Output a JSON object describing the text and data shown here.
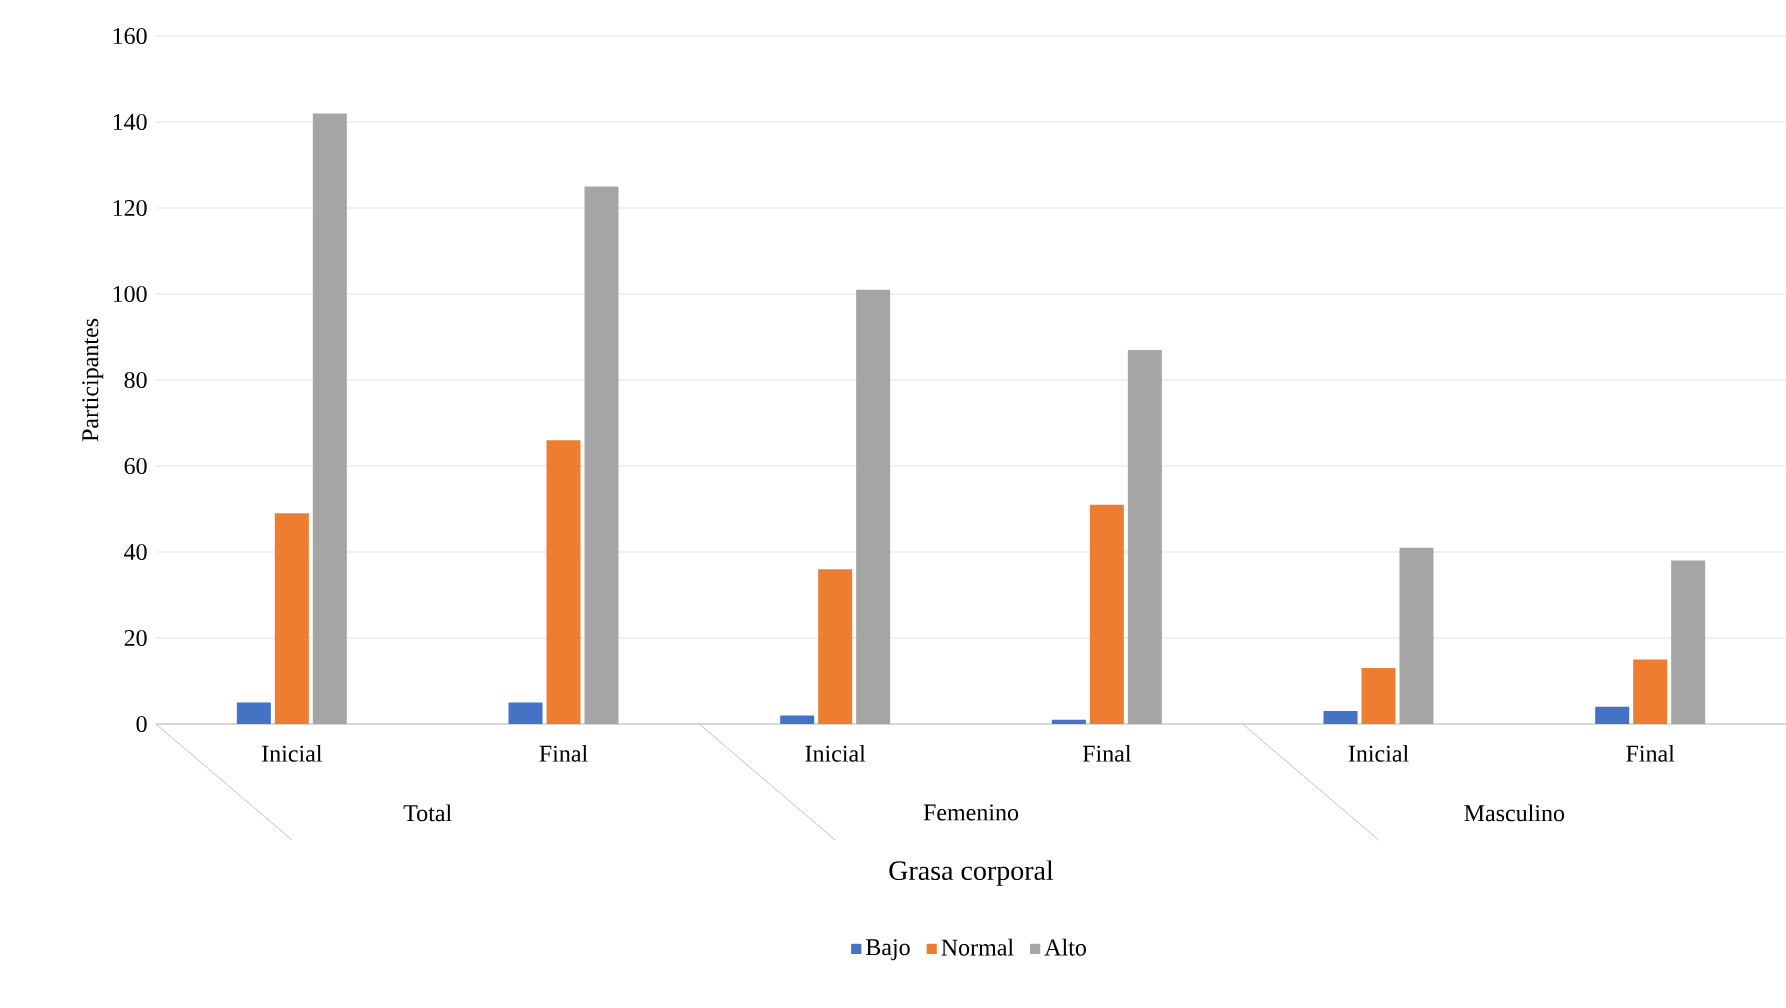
{
  "chart_data": {
    "type": "bar",
    "xlabel": "Grasa corporal",
    "ylabel": "Participantes",
    "categories": [
      "Inicial",
      "Final",
      "Inicial",
      "Final",
      "Inicial",
      "Final"
    ],
    "annotations": [
      "Total",
      "Femenino",
      "Masculino"
    ],
    "series": [
      {
        "name": "Bajo",
        "color": "#4472c4",
        "values": [
          5,
          5,
          2,
          1,
          3,
          4
        ]
      },
      {
        "name": "Normal",
        "color": "#ed7d31",
        "values": [
          49,
          66,
          36,
          51,
          13,
          15
        ]
      },
      {
        "name": "Alto",
        "color": "#a5a5a5",
        "values": [
          142,
          125,
          101,
          87,
          41,
          38
        ]
      }
    ],
    "ylim": [
      0,
      160
    ],
    "yticks": [
      0,
      20,
      40,
      60,
      80,
      100,
      120,
      140,
      160
    ],
    "grid": "y",
    "legend": "bottom"
  }
}
